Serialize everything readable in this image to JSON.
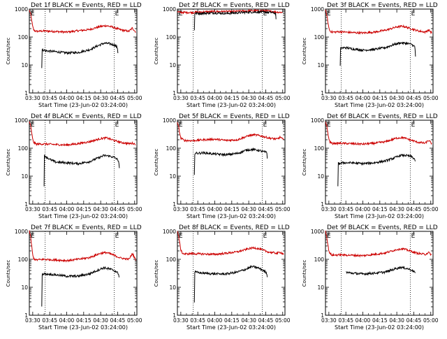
{
  "chart_data": {
    "type": "line",
    "yscale": "log",
    "ylim": [
      1,
      1000
    ],
    "y_ticks": [
      "1",
      "10",
      "100",
      "1000"
    ],
    "x_ticks": [
      "03:30",
      "03:45",
      "04:00",
      "04:15",
      "04:30",
      "04:45",
      "05:00"
    ],
    "x_tick_minutes": [
      0,
      15,
      30,
      45,
      60,
      75,
      90
    ],
    "xlim_minutes": [
      -3,
      92
    ],
    "ylabel": "Counts/sec",
    "xlabel": "Start Time (23-Jun-02 03:24:00)",
    "marker_label": "E",
    "event_minutes": [
      11,
      72
    ],
    "series_colors": {
      "events": "#000000",
      "lld": "#cc0000"
    },
    "panels": [
      {
        "title": "Det 1f BLACK = Events, RED = LLD",
        "lld": [
          [
            -3,
            900
          ],
          [
            -2,
            700
          ],
          [
            -1,
            420
          ],
          [
            0,
            230
          ],
          [
            1,
            175
          ],
          [
            3,
            160
          ],
          [
            10,
            165
          ],
          [
            20,
            158
          ],
          [
            30,
            150
          ],
          [
            40,
            168
          ],
          [
            50,
            185
          ],
          [
            60,
            240
          ],
          [
            65,
            255
          ],
          [
            70,
            230
          ],
          [
            78,
            180
          ],
          [
            85,
            160
          ],
          [
            88,
            210
          ],
          [
            91,
            150
          ]
        ],
        "events": [
          [
            8,
            8
          ],
          [
            8.3,
            35
          ],
          [
            12,
            32
          ],
          [
            20,
            30
          ],
          [
            30,
            27
          ],
          [
            40,
            28
          ],
          [
            50,
            35
          ],
          [
            58,
            50
          ],
          [
            63,
            60
          ],
          [
            68,
            58
          ],
          [
            73,
            50
          ],
          [
            75,
            40
          ],
          [
            75.5,
            15
          ]
        ]
      },
      {
        "title": "Det 2f BLACK = Events, RED = LLD",
        "lld": [
          [
            -3,
            820
          ],
          [
            -2,
            780
          ],
          [
            0,
            760
          ],
          [
            10,
            760
          ],
          [
            20,
            790
          ],
          [
            30,
            820
          ],
          [
            45,
            820
          ],
          [
            60,
            870
          ],
          [
            75,
            870
          ],
          [
            85,
            780
          ],
          [
            90,
            760
          ]
        ],
        "events": [
          [
            12,
            180
          ],
          [
            12.2,
            700
          ],
          [
            20,
            710
          ],
          [
            30,
            730
          ],
          [
            40,
            700
          ],
          [
            50,
            740
          ],
          [
            60,
            780
          ],
          [
            70,
            790
          ],
          [
            80,
            760
          ],
          [
            84,
            700
          ],
          [
            84.2,
            300
          ]
        ]
      },
      {
        "title": "Det 3f BLACK = Events, RED = LLD",
        "lld": [
          [
            -3,
            880
          ],
          [
            -2,
            650
          ],
          [
            -1,
            380
          ],
          [
            0,
            210
          ],
          [
            1,
            165
          ],
          [
            3,
            150
          ],
          [
            10,
            155
          ],
          [
            20,
            145
          ],
          [
            30,
            140
          ],
          [
            40,
            150
          ],
          [
            50,
            175
          ],
          [
            60,
            230
          ],
          [
            65,
            245
          ],
          [
            70,
            215
          ],
          [
            78,
            170
          ],
          [
            85,
            150
          ],
          [
            88,
            180
          ],
          [
            91,
            140
          ]
        ],
        "events": [
          [
            10,
            9
          ],
          [
            10.3,
            40
          ],
          [
            15,
            42
          ],
          [
            20,
            38
          ],
          [
            30,
            34
          ],
          [
            40,
            36
          ],
          [
            50,
            42
          ],
          [
            58,
            55
          ],
          [
            63,
            62
          ],
          [
            68,
            60
          ],
          [
            73,
            55
          ],
          [
            76,
            45
          ],
          [
            76.5,
            20
          ]
        ]
      },
      {
        "title": "Det 4f BLACK = Events, RED = LLD",
        "lld": [
          [
            -3,
            900
          ],
          [
            -2,
            650
          ],
          [
            -1,
            380
          ],
          [
            0,
            200
          ],
          [
            1,
            160
          ],
          [
            3,
            140
          ],
          [
            10,
            142
          ],
          [
            20,
            135
          ],
          [
            30,
            130
          ],
          [
            40,
            145
          ],
          [
            50,
            170
          ],
          [
            60,
            220
          ],
          [
            65,
            235
          ],
          [
            70,
            200
          ],
          [
            78,
            160
          ],
          [
            85,
            145
          ],
          [
            88,
            150
          ],
          [
            91,
            140
          ]
        ],
        "events": [
          [
            10,
            4
          ],
          [
            10.3,
            55
          ],
          [
            15,
            40
          ],
          [
            20,
            32
          ],
          [
            30,
            30
          ],
          [
            40,
            28
          ],
          [
            50,
            33
          ],
          [
            58,
            45
          ],
          [
            63,
            55
          ],
          [
            68,
            52
          ],
          [
            73,
            45
          ],
          [
            76,
            35
          ],
          [
            76.5,
            18
          ]
        ]
      },
      {
        "title": "Det 5f BLACK = Events, RED = LLD",
        "lld": [
          [
            -3,
            800
          ],
          [
            -2,
            600
          ],
          [
            -1,
            350
          ],
          [
            0,
            230
          ],
          [
            3,
            190
          ],
          [
            10,
            185
          ],
          [
            20,
            200
          ],
          [
            30,
            210
          ],
          [
            40,
            190
          ],
          [
            50,
            200
          ],
          [
            60,
            280
          ],
          [
            65,
            300
          ],
          [
            70,
            280
          ],
          [
            78,
            230
          ],
          [
            85,
            210
          ],
          [
            88,
            250
          ],
          [
            91,
            190
          ]
        ],
        "events": [
          [
            12,
            12
          ],
          [
            12.3,
            65
          ],
          [
            20,
            68
          ],
          [
            30,
            62
          ],
          [
            40,
            58
          ],
          [
            50,
            65
          ],
          [
            58,
            85
          ],
          [
            63,
            90
          ],
          [
            68,
            85
          ],
          [
            73,
            75
          ],
          [
            76,
            70
          ],
          [
            76.5,
            40
          ]
        ]
      },
      {
        "title": "Det 6f BLACK = Events, RED = LLD",
        "lld": [
          [
            -3,
            900
          ],
          [
            -2,
            650
          ],
          [
            -1,
            380
          ],
          [
            0,
            210
          ],
          [
            1,
            165
          ],
          [
            3,
            148
          ],
          [
            10,
            150
          ],
          [
            20,
            145
          ],
          [
            30,
            140
          ],
          [
            40,
            150
          ],
          [
            50,
            170
          ],
          [
            60,
            230
          ],
          [
            65,
            240
          ],
          [
            70,
            210
          ],
          [
            78,
            165
          ],
          [
            85,
            150
          ],
          [
            88,
            190
          ],
          [
            91,
            145
          ]
        ],
        "events": [
          [
            8,
            4
          ],
          [
            8.3,
            28
          ],
          [
            12,
            30
          ],
          [
            20,
            30
          ],
          [
            30,
            28
          ],
          [
            40,
            30
          ],
          [
            50,
            35
          ],
          [
            58,
            45
          ],
          [
            63,
            55
          ],
          [
            68,
            55
          ],
          [
            73,
            50
          ],
          [
            76,
            40
          ],
          [
            76.5,
            25
          ]
        ]
      },
      {
        "title": "Det 7f BLACK = Events, RED = LLD",
        "lld": [
          [
            -3,
            1000
          ],
          [
            -2,
            700
          ],
          [
            -1,
            320
          ],
          [
            0,
            140
          ],
          [
            1,
            105
          ],
          [
            3,
            95
          ],
          [
            10,
            100
          ],
          [
            20,
            95
          ],
          [
            30,
            90
          ],
          [
            40,
            100
          ],
          [
            50,
            115
          ],
          [
            60,
            165
          ],
          [
            65,
            175
          ],
          [
            70,
            150
          ],
          [
            78,
            110
          ],
          [
            85,
            100
          ],
          [
            88,
            160
          ],
          [
            91,
            95
          ]
        ],
        "events": [
          [
            8,
            2
          ],
          [
            8.3,
            30
          ],
          [
            12,
            30
          ],
          [
            20,
            28
          ],
          [
            30,
            25
          ],
          [
            40,
            25
          ],
          [
            50,
            30
          ],
          [
            58,
            42
          ],
          [
            63,
            50
          ],
          [
            68,
            45
          ],
          [
            73,
            38
          ],
          [
            76,
            30
          ],
          [
            76.5,
            18
          ]
        ]
      },
      {
        "title": "Det 8f BLACK = Events, RED = LLD",
        "lld": [
          [
            -3,
            1000
          ],
          [
            -2,
            700
          ],
          [
            -1,
            380
          ],
          [
            0,
            220
          ],
          [
            1,
            175
          ],
          [
            3,
            155
          ],
          [
            10,
            160
          ],
          [
            20,
            155
          ],
          [
            30,
            150
          ],
          [
            40,
            165
          ],
          [
            50,
            185
          ],
          [
            60,
            240
          ],
          [
            65,
            260
          ],
          [
            70,
            230
          ],
          [
            78,
            180
          ],
          [
            85,
            165
          ],
          [
            88,
            180
          ],
          [
            91,
            150
          ]
        ],
        "events": [
          [
            12,
            3
          ],
          [
            12.3,
            35
          ],
          [
            20,
            32
          ],
          [
            30,
            30
          ],
          [
            40,
            30
          ],
          [
            50,
            35
          ],
          [
            58,
            45
          ],
          [
            63,
            55
          ],
          [
            68,
            50
          ],
          [
            73,
            40
          ],
          [
            76,
            32
          ],
          [
            76.5,
            22
          ]
        ]
      },
      {
        "title": "Det 9f BLACK = Events, RED = LLD",
        "lld": [
          [
            -3,
            1000
          ],
          [
            -2,
            700
          ],
          [
            -1,
            360
          ],
          [
            0,
            200
          ],
          [
            1,
            160
          ],
          [
            3,
            140
          ],
          [
            10,
            145
          ],
          [
            20,
            140
          ],
          [
            30,
            135
          ],
          [
            40,
            150
          ],
          [
            50,
            170
          ],
          [
            60,
            225
          ],
          [
            65,
            240
          ],
          [
            70,
            210
          ],
          [
            78,
            165
          ],
          [
            85,
            150
          ],
          [
            88,
            175
          ],
          [
            91,
            140
          ]
        ],
        "events": [
          [
            15,
            35
          ],
          [
            20,
            32
          ],
          [
            30,
            30
          ],
          [
            40,
            32
          ],
          [
            50,
            35
          ],
          [
            58,
            45
          ],
          [
            63,
            52
          ],
          [
            68,
            48
          ],
          [
            73,
            42
          ],
          [
            76,
            35
          ],
          [
            76.5,
            25
          ]
        ]
      }
    ]
  }
}
